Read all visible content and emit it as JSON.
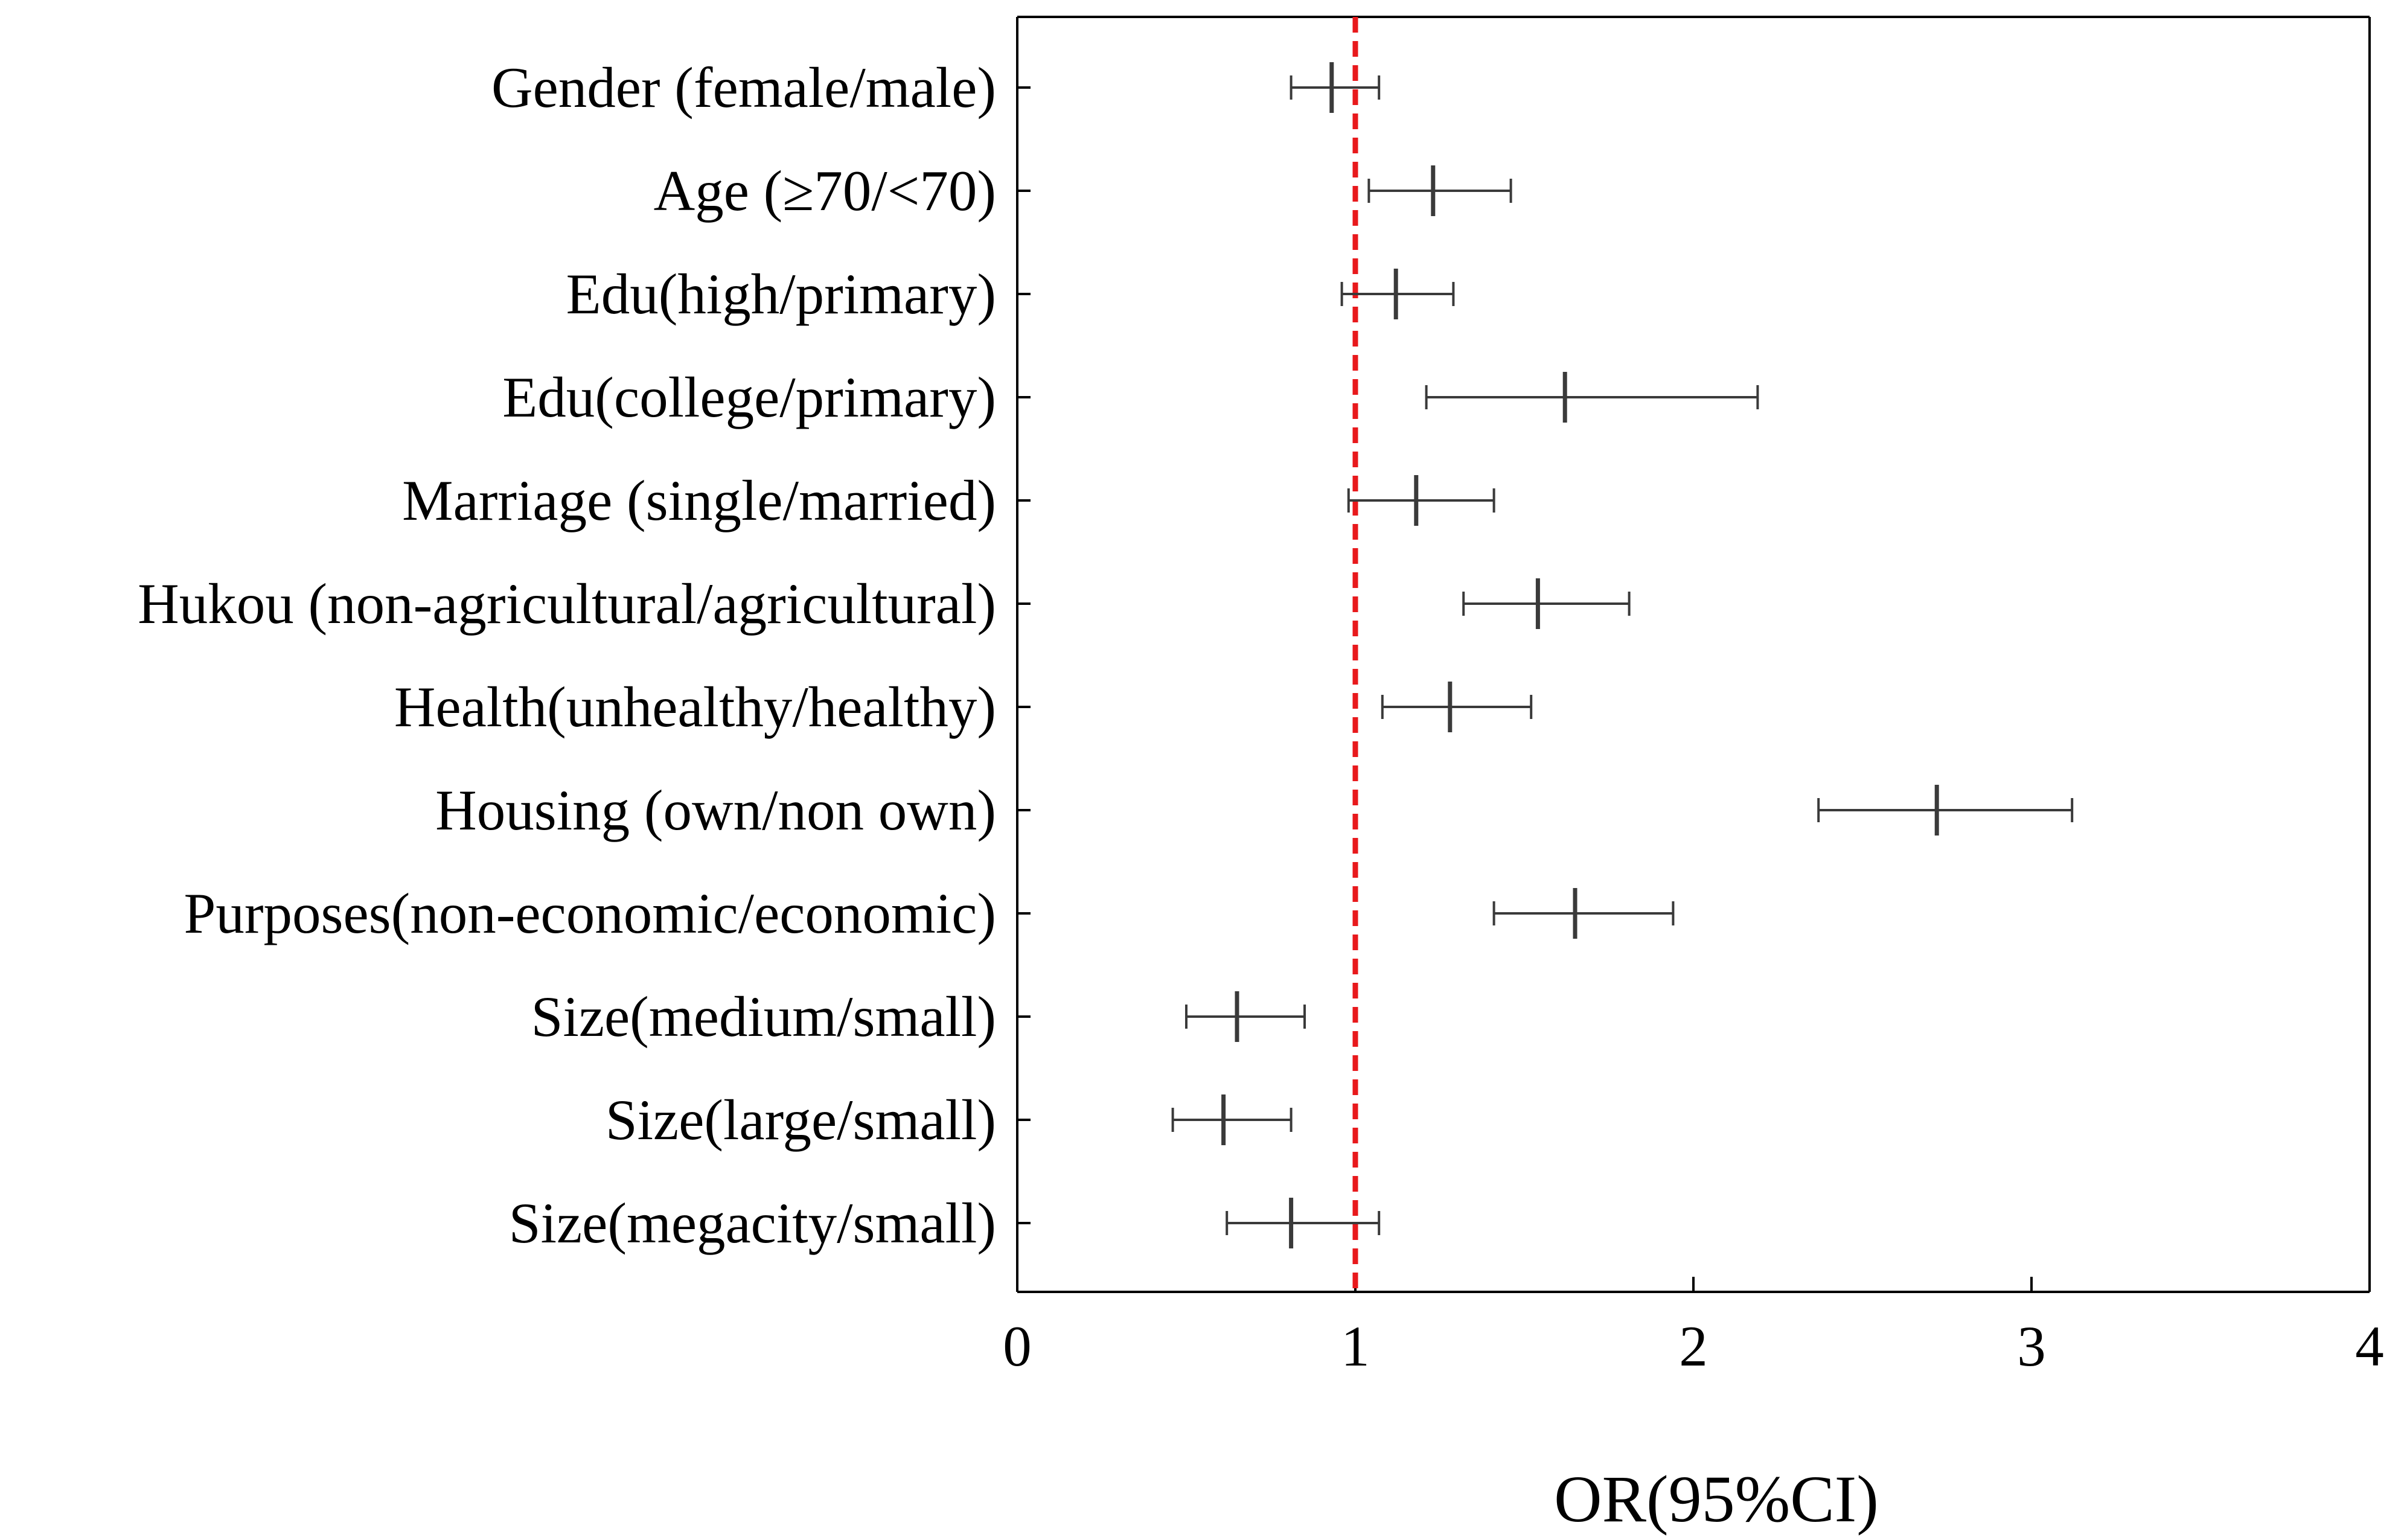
{
  "chart_data": {
    "type": "forest",
    "title": "",
    "xlabel": "OR(95%CI)",
    "ylabel": "",
    "xlim": [
      0,
      4
    ],
    "x_ticks": [
      0,
      1,
      2,
      3,
      4
    ],
    "x_tick_labels": [
      "0",
      "1",
      "2",
      "3",
      "4"
    ],
    "reference_line": {
      "x": 1,
      "style": "dashed",
      "color": "#e8191c"
    },
    "grid": false,
    "series": [
      {
        "name": "Gender (female/male)",
        "or": 0.93,
        "lower": 0.81,
        "upper": 1.07
      },
      {
        "name": "Age (≥70/<70)",
        "or": 1.23,
        "lower": 1.04,
        "upper": 1.46
      },
      {
        "name": "Edu(high/primary)",
        "or": 1.12,
        "lower": 0.96,
        "upper": 1.29
      },
      {
        "name": "Edu(college/primary)",
        "or": 1.62,
        "lower": 1.21,
        "upper": 2.19
      },
      {
        "name": "Marriage (single/married)",
        "or": 1.18,
        "lower": 0.98,
        "upper": 1.41
      },
      {
        "name": "Hukou (non-agricultural/agricultural)",
        "or": 1.54,
        "lower": 1.32,
        "upper": 1.81
      },
      {
        "name": "Health(unhealthy/healthy)",
        "or": 1.28,
        "lower": 1.08,
        "upper": 1.52
      },
      {
        "name": "Housing (own/non own)",
        "or": 2.72,
        "lower": 2.37,
        "upper": 3.12
      },
      {
        "name": "Purposes(non-economic/economic)",
        "or": 1.65,
        "lower": 1.41,
        "upper": 1.94
      },
      {
        "name": "Size(medium/small)",
        "or": 0.65,
        "lower": 0.5,
        "upper": 0.85
      },
      {
        "name": "Size(large/small)",
        "or": 0.61,
        "lower": 0.46,
        "upper": 0.81
      },
      {
        "name": "Size(megacity/small)",
        "or": 0.81,
        "lower": 0.62,
        "upper": 1.07
      }
    ],
    "colors": {
      "marks": "#3a3a3a",
      "axis": "#000000",
      "reference": "#e8191c"
    }
  }
}
